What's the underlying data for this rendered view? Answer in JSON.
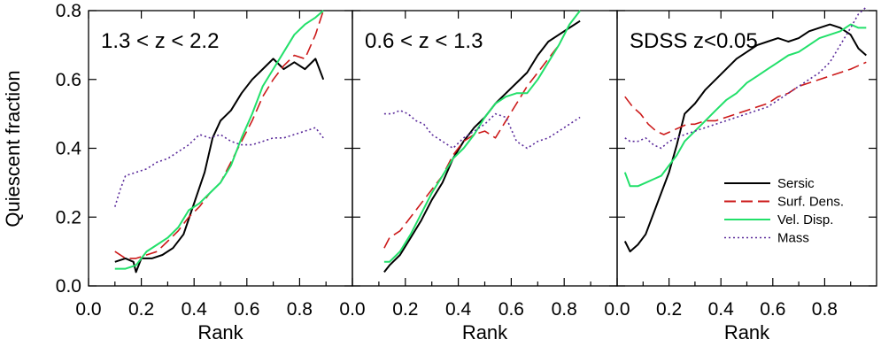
{
  "figure": {
    "ylabel": "Quiescent fraction",
    "legend": {
      "placement": "bottom-right of third panel",
      "entries": [
        {
          "name": "Sersic",
          "color": "#000000",
          "style": "solid"
        },
        {
          "name": "Surf. Dens.",
          "color": "#cc1a1a",
          "style": "dashed"
        },
        {
          "name": "Vel. Disp.",
          "color": "#22e06a",
          "style": "solid"
        },
        {
          "name": "Mass",
          "color": "#5a2a9a",
          "style": "dotted"
        }
      ]
    }
  },
  "chart_data": [
    {
      "type": "line",
      "title": "1.3 < z < 2.2",
      "xlabel": "Rank",
      "ylabel": "Quiescent fraction",
      "xlim": [
        0.0,
        1.0
      ],
      "ylim": [
        0.0,
        0.8
      ],
      "xticks": [
        "0.0",
        "0.2",
        "0.4",
        "0.6",
        "0.8"
      ],
      "yticks": [
        "0.0",
        "0.2",
        "0.4",
        "0.6",
        "0.8"
      ],
      "grid": false,
      "series": [
        {
          "name": "Sersic",
          "color": "#000000",
          "style": "solid",
          "x": [
            0.1,
            0.14,
            0.17,
            0.18,
            0.2,
            0.24,
            0.28,
            0.32,
            0.36,
            0.4,
            0.44,
            0.47,
            0.5,
            0.54,
            0.58,
            0.62,
            0.66,
            0.7,
            0.74,
            0.78,
            0.82,
            0.86,
            0.89
          ],
          "y": [
            0.07,
            0.08,
            0.07,
            0.04,
            0.08,
            0.08,
            0.09,
            0.11,
            0.15,
            0.24,
            0.33,
            0.43,
            0.48,
            0.51,
            0.56,
            0.6,
            0.63,
            0.66,
            0.63,
            0.65,
            0.63,
            0.66,
            0.6
          ]
        },
        {
          "name": "Surf. Dens.",
          "color": "#cc1a1a",
          "style": "dashed",
          "x": [
            0.1,
            0.14,
            0.18,
            0.22,
            0.26,
            0.3,
            0.34,
            0.38,
            0.42,
            0.46,
            0.5,
            0.54,
            0.58,
            0.62,
            0.66,
            0.7,
            0.74,
            0.78,
            0.82,
            0.86,
            0.89
          ],
          "y": [
            0.1,
            0.08,
            0.08,
            0.09,
            0.1,
            0.13,
            0.16,
            0.2,
            0.23,
            0.27,
            0.3,
            0.36,
            0.42,
            0.48,
            0.55,
            0.6,
            0.64,
            0.67,
            0.66,
            0.73,
            0.8
          ]
        },
        {
          "name": "Vel. Disp.",
          "color": "#22e06a",
          "style": "solid",
          "x": [
            0.1,
            0.14,
            0.18,
            0.22,
            0.26,
            0.3,
            0.34,
            0.38,
            0.42,
            0.46,
            0.5,
            0.54,
            0.58,
            0.62,
            0.66,
            0.7,
            0.74,
            0.78,
            0.82,
            0.86,
            0.89
          ],
          "y": [
            0.05,
            0.05,
            0.06,
            0.1,
            0.12,
            0.14,
            0.17,
            0.22,
            0.24,
            0.27,
            0.3,
            0.35,
            0.43,
            0.5,
            0.58,
            0.63,
            0.68,
            0.73,
            0.76,
            0.78,
            0.8
          ]
        },
        {
          "name": "Mass",
          "color": "#5a2a9a",
          "style": "dotted",
          "x": [
            0.1,
            0.12,
            0.14,
            0.18,
            0.22,
            0.26,
            0.3,
            0.34,
            0.38,
            0.42,
            0.46,
            0.5,
            0.54,
            0.58,
            0.62,
            0.66,
            0.7,
            0.74,
            0.78,
            0.82,
            0.86,
            0.89
          ],
          "y": [
            0.23,
            0.28,
            0.32,
            0.33,
            0.34,
            0.36,
            0.37,
            0.39,
            0.41,
            0.44,
            0.43,
            0.44,
            0.42,
            0.41,
            0.41,
            0.42,
            0.43,
            0.43,
            0.44,
            0.45,
            0.46,
            0.43
          ]
        }
      ]
    },
    {
      "type": "line",
      "title": "0.6 < z < 1.3",
      "xlabel": "Rank",
      "xlim": [
        0.0,
        1.0
      ],
      "ylim": [
        0.0,
        0.8
      ],
      "xticks": [
        "0.0",
        "0.2",
        "0.4",
        "0.6",
        "0.8"
      ],
      "grid": false,
      "series": [
        {
          "name": "Sersic",
          "color": "#000000",
          "style": "solid",
          "x": [
            0.12,
            0.14,
            0.18,
            0.22,
            0.26,
            0.3,
            0.34,
            0.38,
            0.42,
            0.46,
            0.5,
            0.54,
            0.58,
            0.62,
            0.66,
            0.7,
            0.74,
            0.78,
            0.82,
            0.86
          ],
          "y": [
            0.04,
            0.06,
            0.09,
            0.14,
            0.19,
            0.25,
            0.3,
            0.37,
            0.42,
            0.46,
            0.49,
            0.53,
            0.56,
            0.59,
            0.62,
            0.67,
            0.71,
            0.73,
            0.75,
            0.77
          ]
        },
        {
          "name": "Surf. Dens.",
          "color": "#cc1a1a",
          "style": "dashed",
          "x": [
            0.12,
            0.14,
            0.18,
            0.22,
            0.26,
            0.3,
            0.34,
            0.38,
            0.42,
            0.46,
            0.5,
            0.54,
            0.58,
            0.62,
            0.66,
            0.7,
            0.74,
            0.78,
            0.82,
            0.86
          ],
          "y": [
            0.11,
            0.14,
            0.16,
            0.2,
            0.24,
            0.28,
            0.32,
            0.38,
            0.42,
            0.44,
            0.45,
            0.43,
            0.48,
            0.53,
            0.58,
            0.62,
            0.66,
            0.7,
            0.76,
            0.8
          ]
        },
        {
          "name": "Vel. Disp.",
          "color": "#22e06a",
          "style": "solid",
          "x": [
            0.12,
            0.14,
            0.18,
            0.22,
            0.26,
            0.3,
            0.34,
            0.38,
            0.42,
            0.46,
            0.5,
            0.54,
            0.58,
            0.62,
            0.66,
            0.7,
            0.74,
            0.78,
            0.82,
            0.86
          ],
          "y": [
            0.07,
            0.07,
            0.1,
            0.15,
            0.21,
            0.27,
            0.32,
            0.37,
            0.4,
            0.44,
            0.49,
            0.53,
            0.55,
            0.56,
            0.56,
            0.6,
            0.65,
            0.7,
            0.76,
            0.8
          ]
        },
        {
          "name": "Mass",
          "color": "#5a2a9a",
          "style": "dotted",
          "x": [
            0.12,
            0.15,
            0.18,
            0.21,
            0.24,
            0.27,
            0.3,
            0.34,
            0.38,
            0.42,
            0.46,
            0.5,
            0.54,
            0.58,
            0.62,
            0.66,
            0.7,
            0.74,
            0.78,
            0.82,
            0.86
          ],
          "y": [
            0.5,
            0.5,
            0.51,
            0.5,
            0.48,
            0.47,
            0.44,
            0.42,
            0.4,
            0.43,
            0.45,
            0.47,
            0.5,
            0.49,
            0.42,
            0.4,
            0.42,
            0.43,
            0.45,
            0.47,
            0.49
          ]
        }
      ]
    },
    {
      "type": "line",
      "title": "SDSS z<0.05",
      "xlabel": "Rank",
      "xlim": [
        0.0,
        1.0
      ],
      "ylim": [
        0.0,
        0.8
      ],
      "xticks": [
        "0.0",
        "0.2",
        "0.4",
        "0.6",
        "0.8"
      ],
      "grid": false,
      "series": [
        {
          "name": "Sersic",
          "color": "#000000",
          "style": "solid",
          "x": [
            0.03,
            0.05,
            0.08,
            0.11,
            0.14,
            0.17,
            0.2,
            0.23,
            0.26,
            0.3,
            0.34,
            0.38,
            0.42,
            0.46,
            0.5,
            0.54,
            0.58,
            0.62,
            0.66,
            0.7,
            0.74,
            0.78,
            0.82,
            0.86,
            0.9,
            0.93,
            0.96
          ],
          "y": [
            0.13,
            0.1,
            0.12,
            0.15,
            0.21,
            0.27,
            0.33,
            0.41,
            0.5,
            0.53,
            0.57,
            0.6,
            0.63,
            0.66,
            0.68,
            0.7,
            0.71,
            0.72,
            0.71,
            0.72,
            0.74,
            0.75,
            0.76,
            0.75,
            0.73,
            0.69,
            0.67
          ]
        },
        {
          "name": "Surf. Dens.",
          "color": "#cc1a1a",
          "style": "dashed",
          "x": [
            0.03,
            0.06,
            0.09,
            0.12,
            0.15,
            0.18,
            0.21,
            0.24,
            0.27,
            0.3,
            0.34,
            0.38,
            0.42,
            0.46,
            0.5,
            0.54,
            0.58,
            0.62,
            0.66,
            0.7,
            0.74,
            0.78,
            0.82,
            0.86,
            0.9,
            0.93,
            0.96
          ],
          "y": [
            0.55,
            0.52,
            0.5,
            0.47,
            0.45,
            0.44,
            0.45,
            0.46,
            0.47,
            0.47,
            0.48,
            0.48,
            0.49,
            0.5,
            0.51,
            0.52,
            0.53,
            0.55,
            0.56,
            0.58,
            0.59,
            0.6,
            0.61,
            0.62,
            0.63,
            0.64,
            0.65
          ]
        },
        {
          "name": "Vel. Disp.",
          "color": "#22e06a",
          "style": "solid",
          "x": [
            0.03,
            0.05,
            0.08,
            0.11,
            0.14,
            0.17,
            0.2,
            0.23,
            0.26,
            0.3,
            0.34,
            0.38,
            0.42,
            0.46,
            0.5,
            0.54,
            0.58,
            0.62,
            0.66,
            0.7,
            0.74,
            0.78,
            0.82,
            0.86,
            0.9,
            0.93,
            0.96
          ],
          "y": [
            0.33,
            0.29,
            0.29,
            0.3,
            0.31,
            0.32,
            0.35,
            0.38,
            0.42,
            0.45,
            0.48,
            0.51,
            0.54,
            0.56,
            0.59,
            0.61,
            0.63,
            0.65,
            0.67,
            0.68,
            0.7,
            0.72,
            0.73,
            0.74,
            0.76,
            0.75,
            0.75
          ]
        },
        {
          "name": "Mass",
          "color": "#5a2a9a",
          "style": "dotted",
          "x": [
            0.03,
            0.05,
            0.08,
            0.11,
            0.14,
            0.17,
            0.2,
            0.23,
            0.26,
            0.3,
            0.34,
            0.38,
            0.42,
            0.46,
            0.5,
            0.54,
            0.58,
            0.62,
            0.66,
            0.7,
            0.74,
            0.78,
            0.82,
            0.86,
            0.9,
            0.93,
            0.96
          ],
          "y": [
            0.43,
            0.42,
            0.42,
            0.43,
            0.41,
            0.4,
            0.42,
            0.43,
            0.44,
            0.45,
            0.46,
            0.47,
            0.48,
            0.49,
            0.5,
            0.51,
            0.52,
            0.54,
            0.56,
            0.58,
            0.6,
            0.62,
            0.65,
            0.7,
            0.75,
            0.79,
            0.81
          ]
        }
      ]
    }
  ]
}
